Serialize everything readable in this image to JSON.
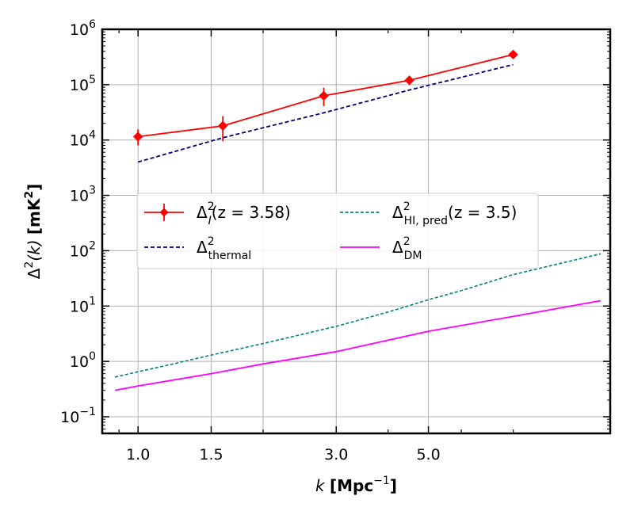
{
  "chart_data": {
    "type": "line",
    "xscale": "log",
    "yscale": "log",
    "xlim": [
      0.82,
      13.7
    ],
    "ylim": [
      0.05,
      1000000
    ],
    "grid": true,
    "xlabel": {
      "var": "k",
      "units": "[Mpc",
      "sup": "−1",
      "close": "]"
    },
    "ylabel": {
      "lead": "Δ",
      "sup": "2",
      "arg": "(k)",
      "units": "[mK",
      "close": "]"
    },
    "xticks": [
      {
        "value": 1.0,
        "label": "1.0"
      },
      {
        "value": 1.5,
        "label": "1.5"
      },
      {
        "value": 3.0,
        "label": "3.0"
      },
      {
        "value": 5.0,
        "label": "5.0"
      }
    ],
    "xgrid_values": [
      1.0,
      1.5,
      2.0,
      3.0,
      5.0
    ],
    "xminor_values": [
      0.9,
      2.0,
      4.0,
      6.0,
      8.0
    ],
    "yticks": [
      {
        "value": 0.1,
        "base": "10",
        "exp": "−1"
      },
      {
        "value": 1,
        "base": "10",
        "exp": "0"
      },
      {
        "value": 10,
        "base": "10",
        "exp": "1"
      },
      {
        "value": 100,
        "base": "10",
        "exp": "2"
      },
      {
        "value": 1000,
        "base": "10",
        "exp": "3"
      },
      {
        "value": 10000,
        "base": "10",
        "exp": "4"
      },
      {
        "value": 100000,
        "base": "10",
        "exp": "5"
      },
      {
        "value": 1000000,
        "base": "10",
        "exp": "6"
      }
    ],
    "series": [
      {
        "name": "delta-I",
        "style": "errorbar",
        "color": "#ff0000",
        "legend": {
          "main": "Δ",
          "sup": "2",
          "sub": "I",
          "tail": "(z = 3.58)"
        },
        "x": [
          1.0,
          1.6,
          2.8,
          4.5,
          8.0
        ],
        "y": [
          11500,
          18000,
          63000,
          120000,
          350000
        ],
        "yerr_low": [
          3500,
          8500,
          22000,
          20000,
          25000
        ],
        "yerr_high": [
          4000,
          9000,
          25000,
          22000,
          30000
        ]
      },
      {
        "name": "delta-thermal",
        "style": "dashed",
        "color": "#000080",
        "legend": {
          "main": "Δ",
          "sup": "2",
          "sub": "thermal",
          "tail": ""
        },
        "x": [
          1.0,
          1.6,
          2.8,
          4.5,
          8.0
        ],
        "y": [
          4000,
          11000,
          31000,
          80000,
          230000
        ]
      },
      {
        "name": "delta-HI-pred",
        "style": "dashed-fine",
        "color": "#008080",
        "legend": {
          "main": "Δ",
          "sup": "2",
          "sub": "HI, pred",
          "tail": "(z = 3.5)"
        },
        "x": [
          0.88,
          1.0,
          1.2,
          1.5,
          2.0,
          3.0,
          4.0,
          5.0,
          6.0,
          8.0,
          10.0,
          13.0
        ],
        "y": [
          0.52,
          0.65,
          0.88,
          1.3,
          2.1,
          4.3,
          7.8,
          13.0,
          19.0,
          37.0,
          55.0,
          88.0
        ]
      },
      {
        "name": "delta-DM",
        "style": "solid",
        "color": "#ff00ff",
        "legend": {
          "main": "Δ",
          "sup": "2",
          "sub": "DM",
          "tail": ""
        },
        "x": [
          0.88,
          1.0,
          1.5,
          2.0,
          3.0,
          5.0,
          8.0,
          13.0
        ],
        "y": [
          0.3,
          0.36,
          0.6,
          0.9,
          1.5,
          3.5,
          6.5,
          12.5
        ]
      }
    ]
  }
}
